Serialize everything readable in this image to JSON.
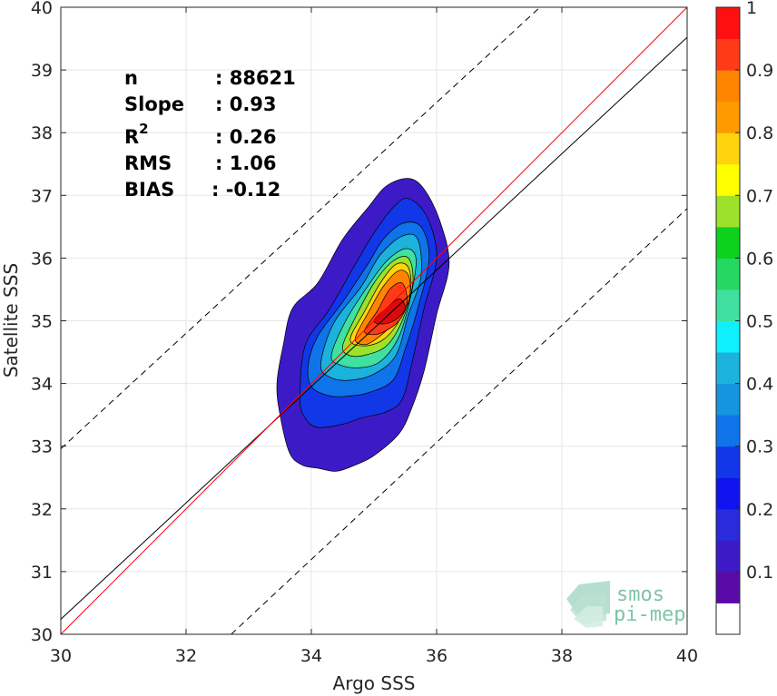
{
  "chart_data": {
    "type": "contour",
    "xlabel": "Argo SSS",
    "ylabel": "Satellite SSS",
    "xlim": [
      30,
      40
    ],
    "ylim": [
      30,
      40
    ],
    "xticks": [
      "30",
      "32",
      "34",
      "36",
      "38",
      "40"
    ],
    "yticks": [
      "30",
      "31",
      "32",
      "33",
      "34",
      "35",
      "36",
      "37",
      "38",
      "39",
      "40"
    ],
    "grid": true,
    "stats": [
      {
        "label": "n",
        "value": ": 88621"
      },
      {
        "label": "Slope",
        "value": ": 0.93"
      },
      {
        "label": "R",
        "sup": "2",
        "value": ": 0.26"
      },
      {
        "label": "RMS",
        "value": ": 1.06"
      },
      {
        "label": "BIAS",
        "value": ": -0.12"
      }
    ],
    "lines": {
      "identity": {
        "color": "#ff0000",
        "x": [
          30,
          40
        ],
        "y": [
          30,
          40
        ]
      },
      "regression": {
        "color": "#000000",
        "x": [
          30,
          40
        ],
        "y": [
          30.24,
          39.52
        ]
      },
      "upper_dashed": {
        "color": "#000000",
        "x": [
          30,
          37.65
        ],
        "y": [
          32.96,
          40
        ]
      },
      "lower_dashed": {
        "color": "#000000",
        "x": [
          32.72,
          40
        ],
        "y": [
          30,
          36.79
        ]
      }
    },
    "contours": [
      {
        "level": 0.05,
        "color": "#3c1bc6",
        "points": [
          [
            33.55,
            34.6
          ],
          [
            33.7,
            35.2
          ],
          [
            34.1,
            35.6
          ],
          [
            34.5,
            36.3
          ],
          [
            34.9,
            36.8
          ],
          [
            35.2,
            37.15
          ],
          [
            35.55,
            37.27
          ],
          [
            35.8,
            37.1
          ],
          [
            36.05,
            36.6
          ],
          [
            36.2,
            35.9
          ],
          [
            36.0,
            35.1
          ],
          [
            35.8,
            34.2
          ],
          [
            35.6,
            33.6
          ],
          [
            35.4,
            33.2
          ],
          [
            35.0,
            32.85
          ],
          [
            34.7,
            32.7
          ],
          [
            34.4,
            32.6
          ],
          [
            34.1,
            32.65
          ],
          [
            33.85,
            32.7
          ],
          [
            33.65,
            32.9
          ],
          [
            33.5,
            33.5
          ],
          [
            33.45,
            34.0
          ]
        ]
      },
      {
        "level": 0.15,
        "color": "#1237e8",
        "points": [
          [
            33.82,
            33.75
          ],
          [
            33.9,
            34.6
          ],
          [
            34.3,
            35.2
          ],
          [
            34.7,
            35.9
          ],
          [
            35.0,
            36.4
          ],
          [
            35.3,
            36.8
          ],
          [
            35.55,
            36.95
          ],
          [
            35.85,
            36.65
          ],
          [
            36.0,
            36.0
          ],
          [
            35.8,
            35.2
          ],
          [
            35.6,
            34.3
          ],
          [
            35.45,
            33.75
          ],
          [
            35.2,
            33.55
          ],
          [
            34.8,
            33.45
          ],
          [
            34.5,
            33.35
          ],
          [
            34.1,
            33.3
          ],
          [
            33.9,
            33.45
          ]
        ]
      },
      {
        "level": 0.25,
        "color": "#0f74ea",
        "points": [
          [
            33.95,
            34.3
          ],
          [
            34.1,
            34.75
          ],
          [
            34.5,
            35.3
          ],
          [
            34.9,
            35.9
          ],
          [
            35.15,
            36.3
          ],
          [
            35.45,
            36.55
          ],
          [
            35.75,
            36.5
          ],
          [
            35.88,
            36.0
          ],
          [
            35.7,
            35.2
          ],
          [
            35.5,
            34.55
          ],
          [
            35.3,
            34.05
          ],
          [
            34.9,
            33.85
          ],
          [
            34.6,
            33.8
          ],
          [
            34.3,
            33.8
          ],
          [
            34.0,
            33.95
          ]
        ]
      },
      {
        "level": 0.35,
        "color": "#1bb2dc",
        "points": [
          [
            34.15,
            34.3
          ],
          [
            34.35,
            34.95
          ],
          [
            34.8,
            35.55
          ],
          [
            35.1,
            36.05
          ],
          [
            35.45,
            36.35
          ],
          [
            35.7,
            36.3
          ],
          [
            35.75,
            35.7
          ],
          [
            35.55,
            35.1
          ],
          [
            35.35,
            34.45
          ],
          [
            35.0,
            34.15
          ],
          [
            34.6,
            34.05
          ],
          [
            34.3,
            34.1
          ]
        ]
      },
      {
        "level": 0.45,
        "color": "#3fe0a0",
        "points": [
          [
            34.32,
            34.45
          ],
          [
            34.55,
            35.0
          ],
          [
            34.9,
            35.55
          ],
          [
            35.2,
            35.95
          ],
          [
            35.5,
            36.15
          ],
          [
            35.67,
            36.0
          ],
          [
            35.6,
            35.45
          ],
          [
            35.4,
            34.75
          ],
          [
            35.1,
            34.35
          ],
          [
            34.75,
            34.25
          ],
          [
            34.45,
            34.3
          ]
        ]
      },
      {
        "level": 0.55,
        "color": "#9ee12a",
        "points": [
          [
            34.5,
            34.6
          ],
          [
            34.7,
            35.05
          ],
          [
            35.0,
            35.6
          ],
          [
            35.3,
            35.95
          ],
          [
            35.55,
            36.0
          ],
          [
            35.62,
            35.6
          ],
          [
            35.45,
            35.0
          ],
          [
            35.2,
            34.6
          ],
          [
            34.85,
            34.45
          ],
          [
            34.6,
            34.45
          ]
        ]
      },
      {
        "level": 0.65,
        "color": "#ffd40e",
        "points": [
          [
            34.62,
            34.7
          ],
          [
            34.85,
            35.15
          ],
          [
            35.1,
            35.6
          ],
          [
            35.35,
            35.9
          ],
          [
            35.55,
            35.85
          ],
          [
            35.58,
            35.45
          ],
          [
            35.4,
            35.0
          ],
          [
            35.15,
            34.7
          ],
          [
            34.85,
            34.6
          ]
        ]
      },
      {
        "level": 0.75,
        "color": "#ff8400",
        "points": [
          [
            34.7,
            34.72
          ],
          [
            34.92,
            35.15
          ],
          [
            35.15,
            35.55
          ],
          [
            35.4,
            35.8
          ],
          [
            35.56,
            35.7
          ],
          [
            35.55,
            35.3
          ],
          [
            35.3,
            34.95
          ],
          [
            35.05,
            34.72
          ],
          [
            34.85,
            34.62
          ]
        ]
      },
      {
        "level": 0.85,
        "color": "#ff3b17",
        "points": [
          [
            34.85,
            34.85
          ],
          [
            35.05,
            35.15
          ],
          [
            35.25,
            35.5
          ],
          [
            35.45,
            35.6
          ],
          [
            35.53,
            35.3
          ],
          [
            35.4,
            35.0
          ],
          [
            35.15,
            34.82
          ],
          [
            34.95,
            34.78
          ]
        ]
      },
      {
        "level": 0.95,
        "color": "#d90b0b",
        "points": [
          [
            35.0,
            35.0
          ],
          [
            35.2,
            35.2
          ],
          [
            35.4,
            35.35
          ],
          [
            35.5,
            35.2
          ],
          [
            35.35,
            35.02
          ],
          [
            35.15,
            34.95
          ]
        ]
      }
    ],
    "colorbar": {
      "ticks": [
        "0.1",
        "0.2",
        "0.3",
        "0.4",
        "0.5",
        "0.6",
        "0.7",
        "0.8",
        "0.9",
        "1"
      ],
      "tick_values": [
        0.1,
        0.2,
        0.3,
        0.4,
        0.5,
        0.6,
        0.7,
        0.8,
        0.9,
        1.0
      ],
      "levels": [
        0.0,
        0.05,
        0.1,
        0.15,
        0.2,
        0.25,
        0.3,
        0.35,
        0.4,
        0.45,
        0.5,
        0.55,
        0.6,
        0.65,
        0.7,
        0.75,
        0.8,
        0.85,
        0.9,
        0.95,
        1.0
      ],
      "colors": [
        "#ffffff",
        "#5a0aa6",
        "#3c1bc6",
        "#2a2bdb",
        "#0f14f0",
        "#1237e8",
        "#0f74ea",
        "#1595e0",
        "#1bb2dc",
        "#0ff0ff",
        "#3fe0a0",
        "#25d861",
        "#0cd21d",
        "#9ee12a",
        "#ffff00",
        "#ffd40e",
        "#ff9b00",
        "#ff8400",
        "#ff3b17",
        "#ff0f0f",
        "#d90b0b",
        "#8a0000"
      ]
    }
  },
  "logo": {
    "line1": "smos",
    "line2": "pi-mep"
  }
}
